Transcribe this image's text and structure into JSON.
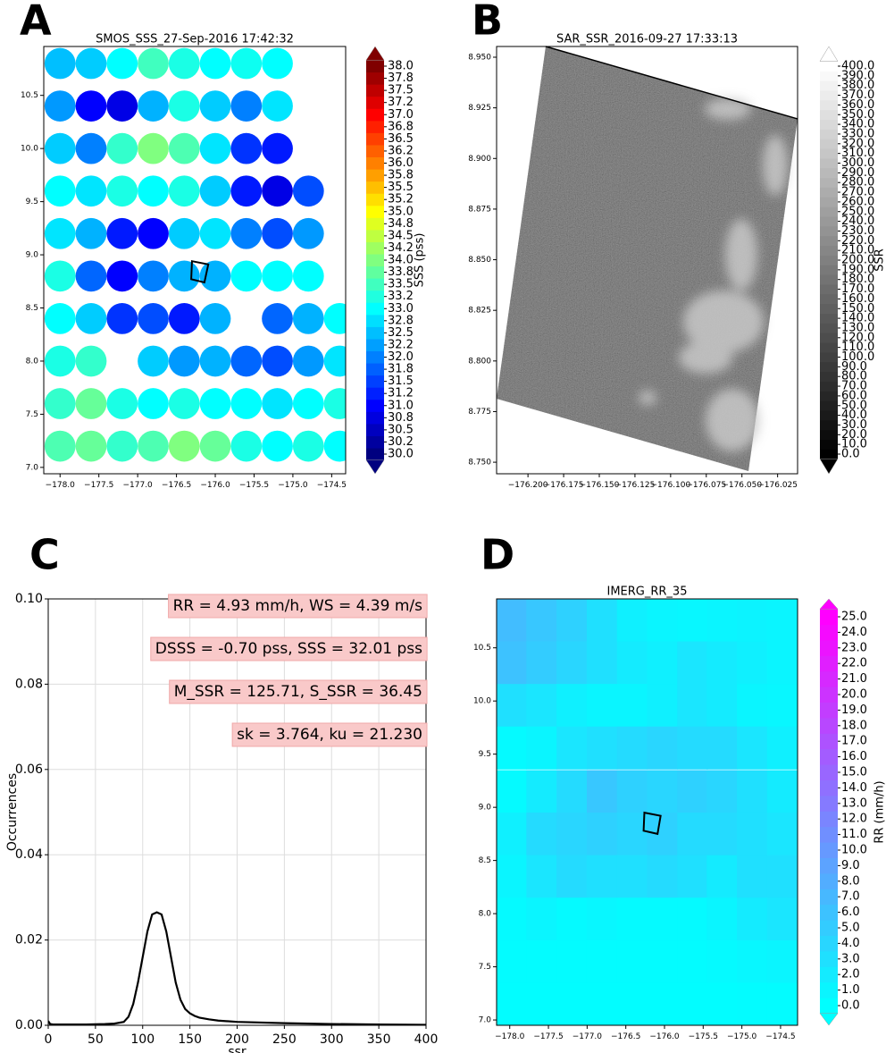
{
  "chart_data": [
    {
      "panel_label": "A",
      "type": "scatter",
      "title": "SMOS_SSS_27-Sep-2016 17:42:32",
      "x": [
        -178.0,
        -177.6,
        -177.2,
        -176.8,
        -176.4,
        -176.0,
        -175.6,
        -175.2,
        -174.8,
        -174.4
      ],
      "y": [
        10.8,
        10.4,
        10.0,
        9.6,
        9.2,
        8.8,
        8.4,
        8.0,
        7.6,
        7.2
      ],
      "z": [
        [
          32.5,
          32.6,
          33.0,
          33.5,
          33.2,
          33.0,
          33.1,
          33.0,
          null,
          null
        ],
        [
          32.2,
          31.0,
          30.8,
          32.4,
          33.2,
          32.6,
          32.0,
          32.8,
          null,
          null
        ],
        [
          32.6,
          32.0,
          33.4,
          34.0,
          33.6,
          32.8,
          31.4,
          31.2,
          null,
          null
        ],
        [
          33.0,
          32.8,
          33.2,
          33.0,
          33.2,
          32.6,
          31.2,
          30.8,
          31.6,
          null
        ],
        [
          32.8,
          32.4,
          31.2,
          31.0,
          32.6,
          32.8,
          32.0,
          31.6,
          32.2,
          null
        ],
        [
          33.2,
          31.8,
          31.0,
          32.0,
          32.4,
          32.4,
          33.0,
          33.0,
          33.0,
          null
        ],
        [
          33.0,
          32.6,
          31.4,
          31.6,
          31.2,
          32.4,
          null,
          31.8,
          32.4,
          33.0
        ],
        [
          33.2,
          33.4,
          null,
          32.6,
          32.2,
          32.4,
          31.8,
          31.6,
          32.2,
          32.8
        ],
        [
          33.4,
          33.8,
          33.2,
          33.0,
          33.2,
          33.0,
          33.0,
          32.8,
          33.0,
          33.2
        ],
        [
          33.6,
          33.8,
          33.4,
          33.6,
          34.0,
          33.8,
          33.2,
          33.0,
          33.2,
          33.0
        ]
      ],
      "colormap": "jet",
      "clim": [
        30,
        38
      ],
      "colorbar_label": "SSS (pss)",
      "colorbar_ticks": [
        {
          "value": 30,
          "label": "30.0"
        },
        {
          "value": 30.25,
          "label": "30.2"
        },
        {
          "value": 30.5,
          "label": "30.5"
        },
        {
          "value": 30.75,
          "label": "30.8"
        },
        {
          "value": 31,
          "label": "31.0"
        },
        {
          "value": 31.25,
          "label": "31.2"
        },
        {
          "value": 31.5,
          "label": "31.5"
        },
        {
          "value": 31.75,
          "label": "31.8"
        },
        {
          "value": 32,
          "label": "32.0"
        },
        {
          "value": 32.25,
          "label": "32.2"
        },
        {
          "value": 32.5,
          "label": "32.5"
        },
        {
          "value": 32.75,
          "label": "32.8"
        },
        {
          "value": 33,
          "label": "33.0"
        },
        {
          "value": 33.25,
          "label": "33.2"
        },
        {
          "value": 33.5,
          "label": "33.5"
        },
        {
          "value": 33.75,
          "label": "33.8"
        },
        {
          "value": 34,
          "label": "34.0"
        },
        {
          "value": 34.25,
          "label": "34.2"
        },
        {
          "value": 34.5,
          "label": "34.5"
        },
        {
          "value": 34.75,
          "label": "34.8"
        },
        {
          "value": 35,
          "label": "35.0"
        },
        {
          "value": 35.25,
          "label": "35.2"
        },
        {
          "value": 35.5,
          "label": "35.5"
        },
        {
          "value": 35.75,
          "label": "35.8"
        },
        {
          "value": 36,
          "label": "36.0"
        },
        {
          "value": 36.25,
          "label": "36.2"
        },
        {
          "value": 36.5,
          "label": "36.5"
        },
        {
          "value": 36.75,
          "label": "36.8"
        },
        {
          "value": 37,
          "label": "37.0"
        },
        {
          "value": 37.25,
          "label": "37.2"
        },
        {
          "value": 37.5,
          "label": "37.5"
        },
        {
          "value": 37.75,
          "label": "37.8"
        },
        {
          "value": 38,
          "label": "38.0"
        }
      ],
      "xlim": [
        -178.21,
        -174.32
      ],
      "ylim": [
        6.94,
        10.96
      ],
      "xticks": [
        {
          "value": -178,
          "label": "−178.0"
        },
        {
          "value": -177.5,
          "label": "−177.5"
        },
        {
          "value": -177,
          "label": "−177.0"
        },
        {
          "value": -176.5,
          "label": "−176.5"
        },
        {
          "value": -176,
          "label": "−176.0"
        },
        {
          "value": -175.5,
          "label": "−175.5"
        },
        {
          "value": -175,
          "label": "−175.0"
        },
        {
          "value": -174.5,
          "label": "−174.5"
        }
      ],
      "yticks": [
        {
          "value": 7,
          "label": "7.0"
        },
        7.5,
        {
          "value": 8,
          "label": "8.0"
        },
        8.5,
        {
          "value": 9,
          "label": "9.0"
        },
        9.5,
        {
          "value": 10,
          "label": "10.0"
        },
        10.5
      ],
      "box": {
        "x": [
          -176.3,
          -176.09,
          -176.14,
          -176.31
        ],
        "y": [
          8.94,
          8.91,
          8.74,
          8.77
        ]
      }
    },
    {
      "panel_label": "B",
      "type": "image",
      "title": "SAR_SSR_2016-09-27 17:33:13",
      "colormap": "gray",
      "clim": [
        0,
        400
      ],
      "colorbar_label": "SSR",
      "colorbar_ticks": [
        {
          "value": 0,
          "label": "0.0"
        },
        {
          "value": 10,
          "label": "10.0"
        },
        {
          "value": 20,
          "label": "20.0"
        },
        {
          "value": 30,
          "label": "30.0"
        },
        {
          "value": 40,
          "label": "40.0"
        },
        {
          "value": 50,
          "label": "50.0"
        },
        {
          "value": 60,
          "label": "60.0"
        },
        {
          "value": 70,
          "label": "70.0"
        },
        {
          "value": 80,
          "label": "80.0"
        },
        {
          "value": 90,
          "label": "90.0"
        },
        {
          "value": 100,
          "label": "100.0"
        },
        {
          "value": 110,
          "label": "110.0"
        },
        {
          "value": 120,
          "label": "120.0"
        },
        {
          "value": 130,
          "label": "130.0"
        },
        {
          "value": 140,
          "label": "140.0"
        },
        {
          "value": 150,
          "label": "150.0"
        },
        {
          "value": 160,
          "label": "160.0"
        },
        {
          "value": 170,
          "label": "170.0"
        },
        {
          "value": 180,
          "label": "180.0"
        },
        {
          "value": 190,
          "label": "190.0"
        },
        {
          "value": 200,
          "label": "200.0"
        },
        {
          "value": 210,
          "label": "210.0"
        },
        {
          "value": 220,
          "label": "220.0"
        },
        {
          "value": 230,
          "label": "230.0"
        },
        {
          "value": 240,
          "label": "240.0"
        },
        {
          "value": 250,
          "label": "250.0"
        },
        {
          "value": 260,
          "label": "260.0"
        },
        {
          "value": 270,
          "label": "270.0"
        },
        {
          "value": 280,
          "label": "280.0"
        },
        {
          "value": 290,
          "label": "290.0"
        },
        {
          "value": 300,
          "label": "300.0"
        },
        {
          "value": 310,
          "label": "310.0"
        },
        {
          "value": 320,
          "label": "320.0"
        },
        {
          "value": 330,
          "label": "330.0"
        },
        {
          "value": 340,
          "label": "340.0"
        },
        {
          "value": 350,
          "label": "350.0"
        },
        {
          "value": 360,
          "label": "360.0"
        },
        {
          "value": 370,
          "label": "370.0"
        },
        {
          "value": 380,
          "label": "380.0"
        },
        {
          "value": 390,
          "label": "390.0"
        },
        {
          "value": 400,
          "label": "400.0"
        }
      ],
      "xlim": [
        -176.222,
        -176.011
      ],
      "ylim": [
        8.7443,
        8.9553
      ],
      "xticks": [
        {
          "value": -176.2,
          "label": "−176.200"
        },
        {
          "value": -176.175,
          "label": "−176.175"
        },
        {
          "value": -176.15,
          "label": "−176.150"
        },
        {
          "value": -176.125,
          "label": "−176.125"
        },
        {
          "value": -176.1,
          "label": "−176.100"
        },
        {
          "value": -176.075,
          "label": "−176.075"
        },
        {
          "value": -176.05,
          "label": "−176.050"
        },
        {
          "value": -176.025,
          "label": "−176.025"
        }
      ],
      "yticks": [
        {
          "value": 8.75,
          "label": "8.750"
        },
        8.775,
        {
          "value": 8.8,
          "label": "8.800"
        },
        8.825,
        {
          "value": 8.85,
          "label": "8.850"
        },
        8.875,
        {
          "value": 8.9,
          "label": "8.900"
        },
        8.925,
        {
          "value": 8.95,
          "label": "8.950"
        }
      ]
    },
    {
      "panel_label": "C",
      "type": "line",
      "x_label": "ssr",
      "y_label": "Occurrences",
      "color": "#000000",
      "grid": true,
      "x": [
        0,
        2,
        5,
        20,
        40,
        60,
        70,
        80,
        85,
        90,
        95,
        100,
        105,
        110,
        115,
        120,
        125,
        130,
        135,
        140,
        145,
        150,
        155,
        160,
        170,
        180,
        200,
        250,
        300,
        350,
        400
      ],
      "values": [
        0.001,
        0.0003,
        0.0002,
        0.0002,
        0.0002,
        0.0003,
        0.0004,
        0.0008,
        0.002,
        0.005,
        0.01,
        0.016,
        0.022,
        0.026,
        0.0265,
        0.026,
        0.022,
        0.016,
        0.01,
        0.006,
        0.0038,
        0.0028,
        0.0022,
        0.0018,
        0.0014,
        0.0011,
        0.0008,
        0.0005,
        0.0003,
        0.0002,
        0.0001
      ],
      "xlim": [
        0,
        400
      ],
      "ylim": [
        0,
        0.1
      ],
      "xticks": [
        0,
        50,
        100,
        150,
        200,
        250,
        300,
        350,
        400
      ],
      "yticks": [
        {
          "value": 0,
          "label": "0.00"
        },
        0.02,
        0.04,
        0.06,
        0.08,
        {
          "value": 0.1,
          "label": "0.10"
        }
      ],
      "annotations": [
        "RR = 4.93 mm/h, WS = 4.39 m/s",
        "DSSS = -0.70 pss, SSS = 32.01 pss",
        "M_SSR = 125.71, S_SSR = 36.45",
        "sk = 3.764, ku = 21.230"
      ]
    },
    {
      "panel_label": "D",
      "type": "heatmap",
      "title": "IMERG_RR_35",
      "x": [
        -177.98,
        -177.59,
        -177.2,
        -176.81,
        -176.42,
        -176.03,
        -175.64,
        -175.26,
        -174.87,
        -174.48
      ],
      "y": [
        10.76,
        10.36,
        9.96,
        9.56,
        9.15,
        8.75,
        8.35,
        7.95,
        7.55,
        7.15
      ],
      "z": [
        [
          6.5,
          5.5,
          4.5,
          3.0,
          1.5,
          1.0,
          0.8,
          1.0,
          1.2,
          1.0
        ],
        [
          6.0,
          5.0,
          4.0,
          3.0,
          2.0,
          1.5,
          2.5,
          2.0,
          1.5,
          1.0
        ],
        [
          3.0,
          2.5,
          1.5,
          1.0,
          1.0,
          1.5,
          2.5,
          2.0,
          1.0,
          0.8
        ],
        [
          0.5,
          1.0,
          2.5,
          3.0,
          3.5,
          4.0,
          3.5,
          3.5,
          2.5,
          1.5
        ],
        [
          0.5,
          2.0,
          3.5,
          5.5,
          4.5,
          4.0,
          4.5,
          4.0,
          3.0,
          2.0
        ],
        [
          1.5,
          3.5,
          4.0,
          4.5,
          4.0,
          4.5,
          3.5,
          3.5,
          3.0,
          2.5
        ],
        [
          1.0,
          2.5,
          3.5,
          3.0,
          3.0,
          3.5,
          3.0,
          2.0,
          3.0,
          3.0
        ],
        [
          0.5,
          1.0,
          0.5,
          0.8,
          0.5,
          0.5,
          0.5,
          1.0,
          2.0,
          2.5
        ],
        [
          0.3,
          0.3,
          0.3,
          0.3,
          0.3,
          0.3,
          0.3,
          0.5,
          0.8,
          1.0
        ],
        [
          0.2,
          0.2,
          0.2,
          0.2,
          0.2,
          0.2,
          0.2,
          0.2,
          0.3,
          0.3
        ]
      ],
      "colormap": "cool",
      "clim": [
        0,
        25
      ],
      "colorbar_label": "RR (mm/h)",
      "colorbar_ticks": [
        {
          "value": 0,
          "label": "0.0"
        },
        {
          "value": 1,
          "label": "1.0"
        },
        {
          "value": 2,
          "label": "2.0"
        },
        {
          "value": 3,
          "label": "3.0"
        },
        {
          "value": 4,
          "label": "4.0"
        },
        {
          "value": 5,
          "label": "5.0"
        },
        {
          "value": 6,
          "label": "6.0"
        },
        {
          "value": 7,
          "label": "7.0"
        },
        {
          "value": 8,
          "label": "8.0"
        },
        {
          "value": 9,
          "label": "9.0"
        },
        {
          "value": 10,
          "label": "10.0"
        },
        {
          "value": 11,
          "label": "11.0"
        },
        {
          "value": 12,
          "label": "12.0"
        },
        {
          "value": 13,
          "label": "13.0"
        },
        {
          "value": 14,
          "label": "14.0"
        },
        {
          "value": 15,
          "label": "15.0"
        },
        {
          "value": 16,
          "label": "16.0"
        },
        {
          "value": 17,
          "label": "17.0"
        },
        {
          "value": 18,
          "label": "18.0"
        },
        {
          "value": 19,
          "label": "19.0"
        },
        {
          "value": 20,
          "label": "20.0"
        },
        {
          "value": 21,
          "label": "21.0"
        },
        {
          "value": 22,
          "label": "22.0"
        },
        {
          "value": 23,
          "label": "23.0"
        },
        {
          "value": 24,
          "label": "24.0"
        },
        {
          "value": 25,
          "label": "25.0"
        }
      ],
      "xlim": [
        -178.17,
        -174.28
      ],
      "ylim": [
        6.95,
        10.96
      ],
      "xticks": [
        {
          "value": -178,
          "label": "−178.0"
        },
        {
          "value": -177.5,
          "label": "−177.5"
        },
        {
          "value": -177,
          "label": "−177.0"
        },
        {
          "value": -176.5,
          "label": "−176.5"
        },
        {
          "value": -176,
          "label": "−176.0"
        },
        {
          "value": -175.5,
          "label": "−175.5"
        },
        {
          "value": -175,
          "label": "−175.0"
        },
        {
          "value": -174.5,
          "label": "−174.5"
        }
      ],
      "yticks": [
        {
          "value": 7,
          "label": "7.0"
        },
        7.5,
        {
          "value": 8,
          "label": "8.0"
        },
        8.5,
        {
          "value": 9,
          "label": "9.0"
        },
        9.5,
        {
          "value": 10,
          "label": "10.0"
        },
        10.5
      ],
      "box": {
        "x": [
          -176.26,
          -176.05,
          -176.09,
          -176.27
        ],
        "y": [
          8.95,
          8.92,
          8.75,
          8.78
        ]
      }
    }
  ]
}
